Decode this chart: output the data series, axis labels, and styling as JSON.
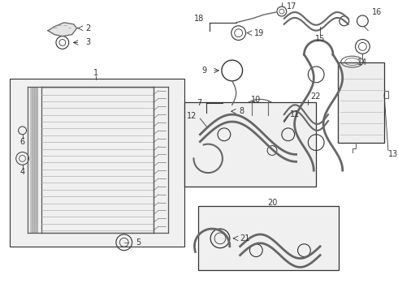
{
  "bg_color": "#ffffff",
  "lc": "#333333",
  "gc": "#aaaaaa",
  "fc": "#eeeeee",
  "figsize": [
    4.9,
    3.6
  ],
  "dpi": 100
}
